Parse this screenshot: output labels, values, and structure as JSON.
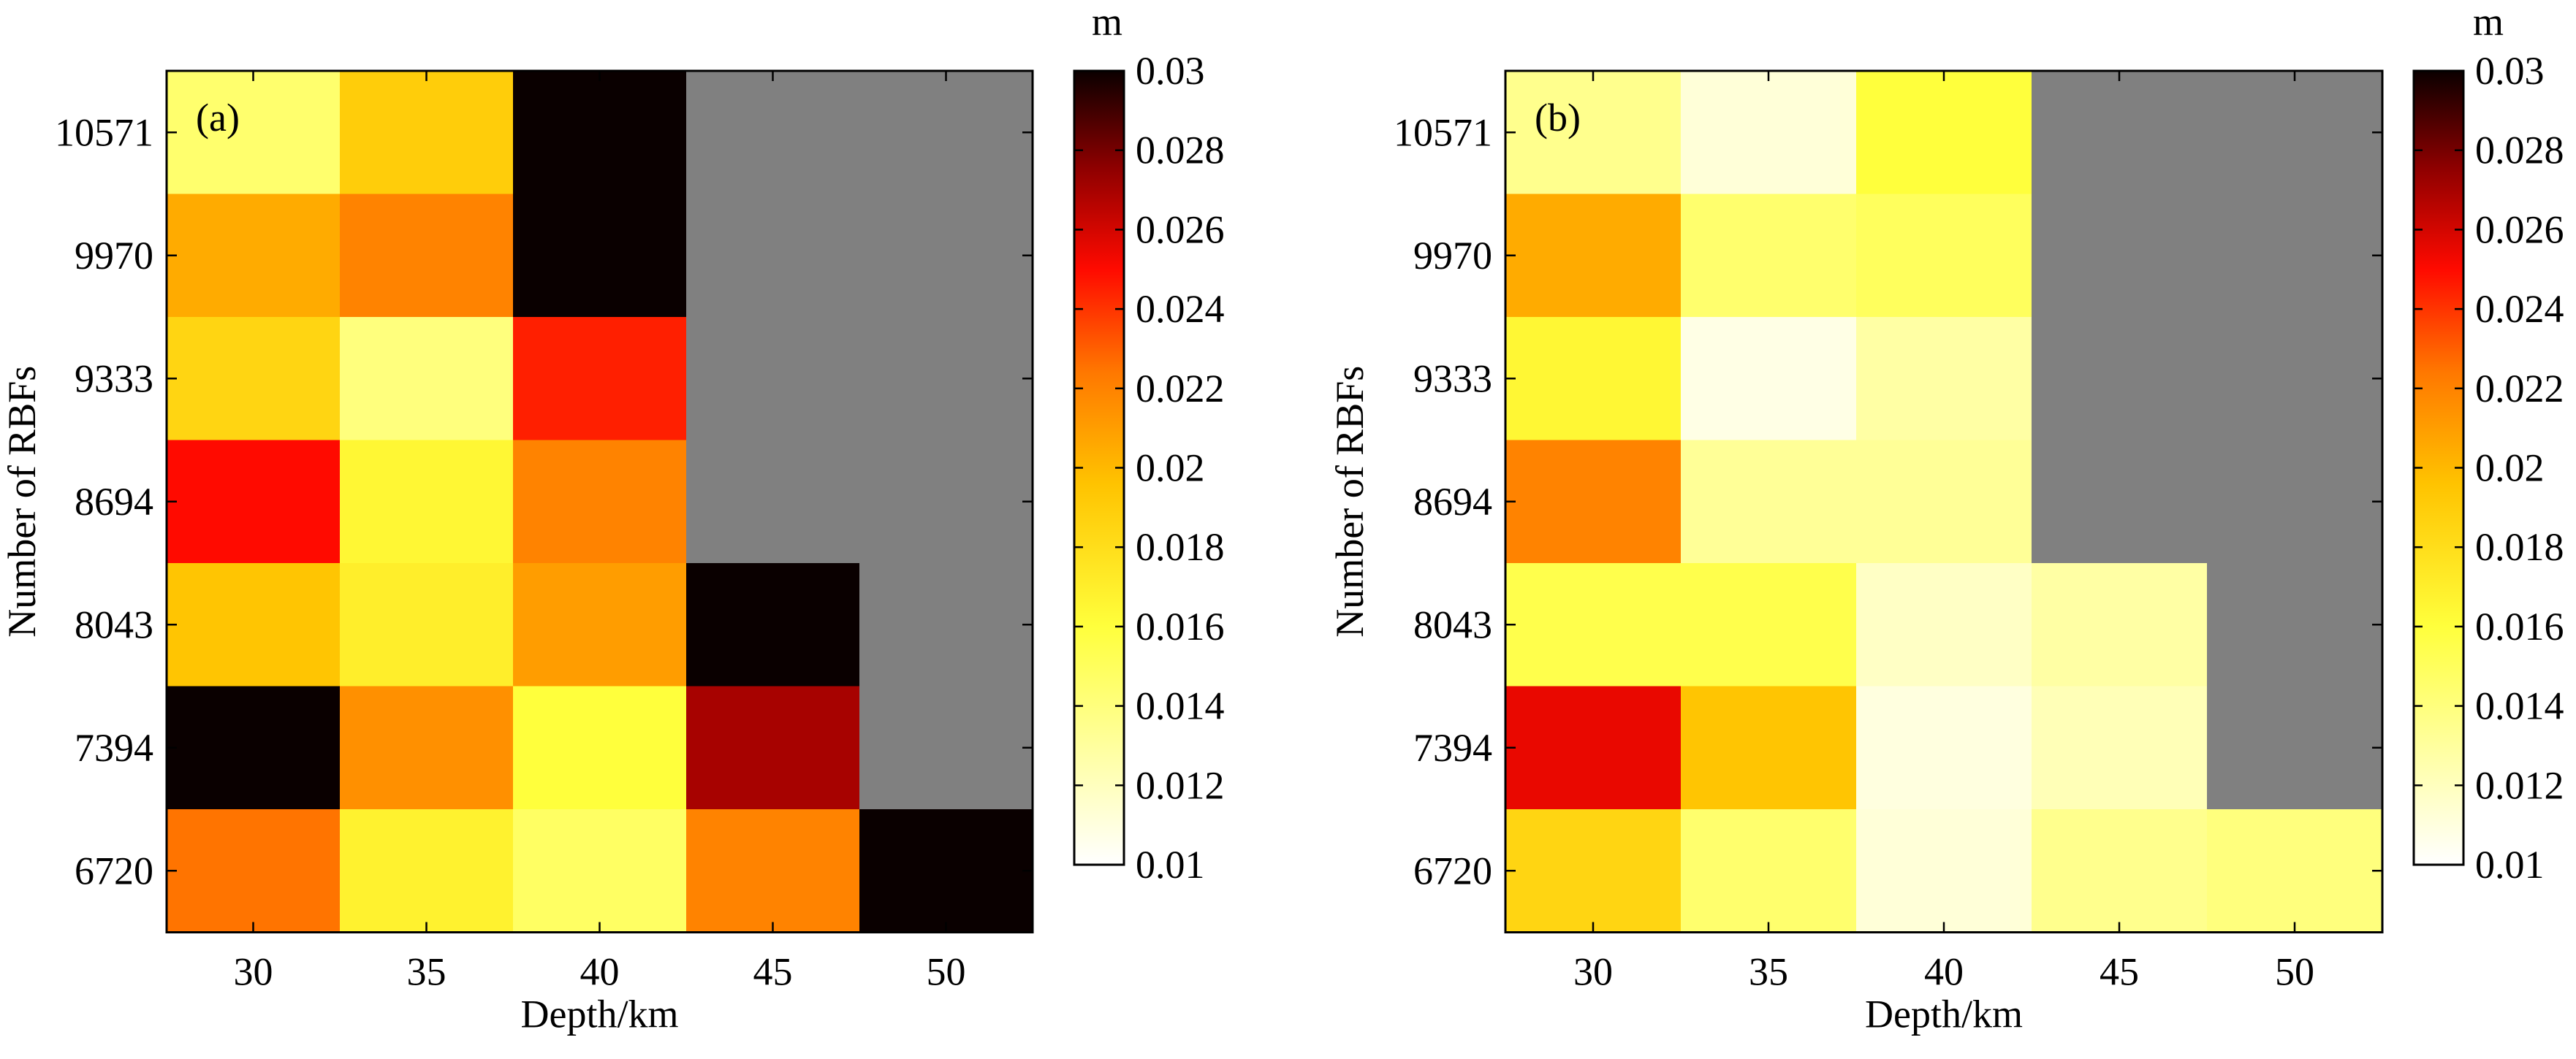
{
  "chart_data": [
    {
      "type": "heatmap",
      "panel_label": "(a)",
      "xlabel": "Depth/km",
      "ylabel": "Number of RBFs",
      "x_categories": [
        "30",
        "35",
        "40",
        "45",
        "50"
      ],
      "y_categories": [
        "10571",
        "9970",
        "9333",
        "8694",
        "8043",
        "7394",
        "6720"
      ],
      "values": [
        [
          0.0145,
          0.019,
          0.03,
          null,
          null
        ],
        [
          0.0205,
          0.022,
          0.03,
          null,
          null
        ],
        [
          0.0185,
          0.014,
          0.0245,
          null,
          null
        ],
        [
          0.025,
          0.0165,
          0.022,
          null,
          null
        ],
        [
          0.0195,
          0.017,
          0.021,
          0.03,
          null
        ],
        [
          0.03,
          0.0215,
          0.016,
          0.027,
          null
        ],
        [
          0.0225,
          0.0168,
          0.0148,
          0.022,
          0.03
        ]
      ],
      "missing_color": "#808080",
      "colorbar": {
        "unit": "m",
        "min": 0.01,
        "max": 0.03,
        "ticks": [
          "0.01",
          "0.012",
          "0.014",
          "0.016",
          "0.018",
          "0.02",
          "0.022",
          "0.024",
          "0.026",
          "0.028",
          "0.03"
        ]
      }
    },
    {
      "type": "heatmap",
      "panel_label": "(b)",
      "xlabel": "Depth/km",
      "ylabel": "Number of RBFs",
      "x_categories": [
        "30",
        "35",
        "40",
        "45",
        "50"
      ],
      "y_categories": [
        "10571",
        "9970",
        "9333",
        "8694",
        "8043",
        "7394",
        "6720"
      ],
      "values": [
        [
          0.0135,
          0.0112,
          0.016,
          null,
          null
        ],
        [
          0.0205,
          0.0145,
          0.015,
          null,
          null
        ],
        [
          0.0165,
          0.0108,
          0.0128,
          null,
          null
        ],
        [
          0.022,
          0.0132,
          0.0132,
          null,
          null
        ],
        [
          0.0155,
          0.0155,
          0.0118,
          0.0128,
          null
        ],
        [
          0.0255,
          0.0195,
          0.011,
          0.0122,
          null
        ],
        [
          0.0185,
          0.0145,
          0.0112,
          0.0135,
          0.014
        ]
      ],
      "missing_color": "#808080",
      "colorbar": {
        "unit": "m",
        "min": 0.01,
        "max": 0.03,
        "ticks": [
          "0.01",
          "0.012",
          "0.014",
          "0.016",
          "0.018",
          "0.02",
          "0.022",
          "0.024",
          "0.026",
          "0.028",
          "0.03"
        ]
      }
    }
  ]
}
